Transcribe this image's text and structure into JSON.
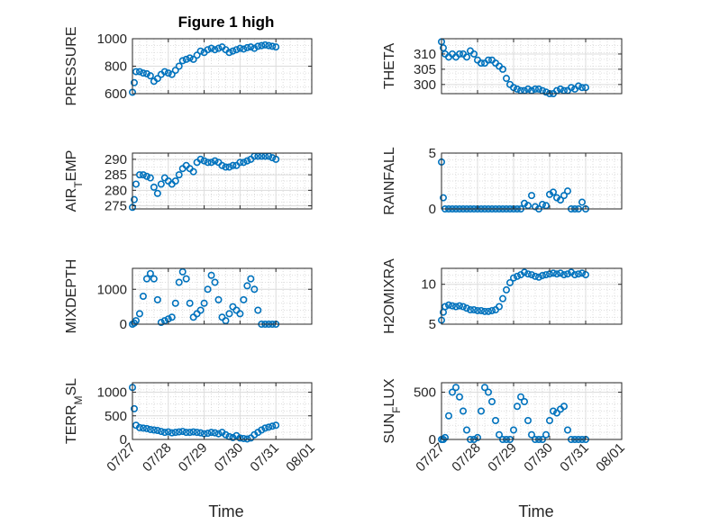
{
  "figure": {
    "title": "Figure 1 high",
    "xlabel": "Time",
    "marker_color": "#0072BD",
    "x_ticks": [
      "07/27",
      "07/28",
      "07/29",
      "07/30",
      "07/31",
      "08/01"
    ]
  },
  "chart_data": [
    {
      "type": "scatter",
      "ylabel": "PRESSURE",
      "ylim": [
        600,
        1000
      ],
      "yticks": [
        600,
        800,
        1000
      ],
      "xlim": [
        0,
        5
      ],
      "grid": true,
      "x": [
        0.0,
        0.05,
        0.1,
        0.2,
        0.3,
        0.4,
        0.5,
        0.6,
        0.7,
        0.8,
        0.9,
        1.0,
        1.1,
        1.2,
        1.3,
        1.4,
        1.5,
        1.6,
        1.7,
        1.8,
        1.9,
        2.0,
        2.1,
        2.2,
        2.3,
        2.4,
        2.5,
        2.6,
        2.7,
        2.8,
        2.9,
        3.0,
        3.1,
        3.2,
        3.3,
        3.4,
        3.5,
        3.6,
        3.7,
        3.8,
        3.9,
        4.0
      ],
      "y": [
        610,
        680,
        760,
        760,
        750,
        745,
        730,
        690,
        710,
        740,
        760,
        750,
        740,
        770,
        800,
        840,
        850,
        860,
        850,
        880,
        910,
        900,
        920,
        930,
        920,
        930,
        940,
        920,
        900,
        910,
        920,
        930,
        925,
        935,
        940,
        930,
        945,
        950,
        955,
        950,
        945,
        940
      ]
    },
    {
      "type": "scatter",
      "ylabel": "THETA",
      "ylim": [
        297,
        315
      ],
      "yticks": [
        300,
        305,
        310
      ],
      "xlim": [
        0,
        5
      ],
      "grid": true,
      "x": [
        0.0,
        0.05,
        0.1,
        0.2,
        0.3,
        0.4,
        0.5,
        0.6,
        0.7,
        0.8,
        0.9,
        1.0,
        1.1,
        1.2,
        1.3,
        1.4,
        1.5,
        1.6,
        1.7,
        1.8,
        1.9,
        2.0,
        2.1,
        2.2,
        2.3,
        2.4,
        2.5,
        2.6,
        2.7,
        2.8,
        2.9,
        3.0,
        3.1,
        3.2,
        3.3,
        3.4,
        3.5,
        3.6,
        3.7,
        3.8,
        3.9,
        4.0
      ],
      "y": [
        314,
        312,
        310,
        309,
        310,
        309,
        310,
        310,
        309,
        311,
        310,
        308,
        307,
        307,
        308,
        308,
        307,
        306,
        305,
        302,
        300,
        299,
        298.5,
        298,
        298,
        298.5,
        298,
        298.5,
        298.5,
        298,
        297.5,
        297,
        297,
        298,
        298.5,
        298,
        298,
        299,
        298.5,
        299.5,
        299,
        299
      ]
    },
    {
      "type": "scatter",
      "ylabel": "AIR_TEMP",
      "ylim": [
        274,
        292
      ],
      "yticks": [
        275,
        280,
        285,
        290
      ],
      "xlim": [
        0,
        5
      ],
      "grid": true,
      "x": [
        0.0,
        0.05,
        0.1,
        0.2,
        0.3,
        0.4,
        0.5,
        0.6,
        0.7,
        0.8,
        0.9,
        1.0,
        1.1,
        1.2,
        1.3,
        1.4,
        1.5,
        1.6,
        1.7,
        1.8,
        1.9,
        2.0,
        2.1,
        2.2,
        2.3,
        2.4,
        2.5,
        2.6,
        2.7,
        2.8,
        2.9,
        3.0,
        3.1,
        3.2,
        3.3,
        3.4,
        3.5,
        3.6,
        3.7,
        3.8,
        3.9,
        4.0
      ],
      "y": [
        274.5,
        277,
        282,
        285,
        285,
        284.5,
        284,
        281,
        279,
        282,
        284,
        283,
        282,
        283,
        285,
        287,
        288,
        287,
        286,
        289,
        290,
        289.5,
        289,
        289,
        289.5,
        289,
        288,
        287.5,
        287.5,
        288,
        288,
        289,
        289,
        289.5,
        290,
        291,
        291,
        291,
        291,
        291,
        290.5,
        290
      ]
    },
    {
      "type": "scatter",
      "ylabel": "RAINFALL",
      "ylim": [
        0,
        5
      ],
      "yticks": [
        0,
        5
      ],
      "xlim": [
        0,
        5
      ],
      "grid": true,
      "x": [
        0.0,
        0.05,
        0.1,
        0.2,
        0.3,
        0.4,
        0.5,
        0.6,
        0.7,
        0.8,
        0.9,
        1.0,
        1.1,
        1.2,
        1.3,
        1.4,
        1.5,
        1.6,
        1.7,
        1.8,
        1.9,
        2.0,
        2.1,
        2.2,
        2.3,
        2.4,
        2.5,
        2.6,
        2.7,
        2.8,
        2.9,
        3.0,
        3.1,
        3.2,
        3.3,
        3.4,
        3.5,
        3.6,
        3.7,
        3.8,
        3.9,
        4.0
      ],
      "y": [
        4.2,
        1,
        0,
        0,
        0,
        0,
        0,
        0,
        0,
        0,
        0,
        0,
        0,
        0,
        0,
        0,
        0,
        0,
        0,
        0,
        0,
        0,
        0,
        0,
        0.5,
        0.3,
        1.2,
        0.2,
        0,
        0.4,
        0.3,
        1.3,
        1.5,
        1,
        0.8,
        1.2,
        1.6,
        0,
        0,
        0,
        0.6,
        0
      ]
    },
    {
      "type": "scatter",
      "ylabel": "MIXDEPTH",
      "ylim": [
        0,
        1600
      ],
      "yticks": [
        0,
        1000
      ],
      "xlim": [
        0,
        5
      ],
      "grid": true,
      "x": [
        0.0,
        0.05,
        0.1,
        0.2,
        0.3,
        0.4,
        0.5,
        0.6,
        0.7,
        0.8,
        0.9,
        1.0,
        1.1,
        1.2,
        1.3,
        1.4,
        1.5,
        1.6,
        1.7,
        1.8,
        1.9,
        2.0,
        2.1,
        2.2,
        2.3,
        2.4,
        2.5,
        2.6,
        2.7,
        2.8,
        2.9,
        3.0,
        3.1,
        3.2,
        3.3,
        3.4,
        3.5,
        3.6,
        3.7,
        3.8,
        3.9,
        4.0
      ],
      "y": [
        0,
        30,
        100,
        300,
        800,
        1300,
        1450,
        1300,
        700,
        50,
        100,
        150,
        200,
        600,
        1200,
        1500,
        1300,
        600,
        200,
        300,
        400,
        600,
        1000,
        1400,
        1200,
        700,
        200,
        100,
        300,
        500,
        400,
        300,
        700,
        1100,
        1300,
        1000,
        400,
        0,
        0,
        0,
        0,
        0
      ]
    },
    {
      "type": "scatter",
      "ylabel": "H2OMIXRA",
      "ylim": [
        5,
        12
      ],
      "yticks": [
        5,
        10
      ],
      "xlim": [
        0,
        5
      ],
      "grid": true,
      "x": [
        0.0,
        0.05,
        0.1,
        0.2,
        0.3,
        0.4,
        0.5,
        0.6,
        0.7,
        0.8,
        0.9,
        1.0,
        1.1,
        1.2,
        1.3,
        1.4,
        1.5,
        1.6,
        1.7,
        1.8,
        1.9,
        2.0,
        2.1,
        2.2,
        2.3,
        2.4,
        2.5,
        2.6,
        2.7,
        2.8,
        2.9,
        3.0,
        3.1,
        3.2,
        3.3,
        3.4,
        3.5,
        3.6,
        3.7,
        3.8,
        3.9,
        4.0
      ],
      "y": [
        5.5,
        6.5,
        7.2,
        7.4,
        7.3,
        7.2,
        7.3,
        7.2,
        7.0,
        6.8,
        6.8,
        6.7,
        6.7,
        6.6,
        6.6,
        6.7,
        6.8,
        7.2,
        8.2,
        9.3,
        10.2,
        10.8,
        11.0,
        11.2,
        11.5,
        11.3,
        11.2,
        11.0,
        10.9,
        11.1,
        11.2,
        11.3,
        11.4,
        11.3,
        11.4,
        11.2,
        11.3,
        11.5,
        11.2,
        11.3,
        11.4,
        11.2
      ]
    },
    {
      "type": "scatter",
      "ylabel": "TERR_MSL",
      "ylim": [
        0,
        1200
      ],
      "yticks": [
        0,
        500,
        1000
      ],
      "xlim": [
        0,
        5
      ],
      "grid": true,
      "x": [
        0.0,
        0.05,
        0.1,
        0.2,
        0.3,
        0.4,
        0.5,
        0.6,
        0.7,
        0.8,
        0.9,
        1.0,
        1.1,
        1.2,
        1.3,
        1.4,
        1.5,
        1.6,
        1.7,
        1.8,
        1.9,
        2.0,
        2.1,
        2.2,
        2.3,
        2.4,
        2.5,
        2.6,
        2.7,
        2.8,
        2.9,
        3.0,
        3.1,
        3.2,
        3.3,
        3.4,
        3.5,
        3.6,
        3.7,
        3.8,
        3.9,
        4.0
      ],
      "y": [
        1100,
        650,
        300,
        250,
        240,
        230,
        210,
        200,
        190,
        170,
        150,
        160,
        140,
        150,
        160,
        170,
        150,
        150,
        160,
        150,
        140,
        120,
        130,
        150,
        140,
        120,
        150,
        100,
        60,
        40,
        80,
        30,
        20,
        10,
        30,
        100,
        150,
        200,
        240,
        260,
        280,
        300
      ]
    },
    {
      "type": "scatter",
      "ylabel": "SUN_FLUX",
      "ylim": [
        0,
        600
      ],
      "yticks": [
        0,
        500
      ],
      "xlim": [
        0,
        5
      ],
      "grid": true,
      "x": [
        0.0,
        0.05,
        0.1,
        0.2,
        0.3,
        0.4,
        0.5,
        0.6,
        0.7,
        0.8,
        0.9,
        1.0,
        1.1,
        1.2,
        1.3,
        1.4,
        1.5,
        1.6,
        1.7,
        1.8,
        1.9,
        2.0,
        2.1,
        2.2,
        2.3,
        2.4,
        2.5,
        2.6,
        2.7,
        2.8,
        2.9,
        3.0,
        3.1,
        3.2,
        3.3,
        3.4,
        3.5,
        3.6,
        3.7,
        3.8,
        3.9,
        4.0
      ],
      "y": [
        0,
        0,
        20,
        250,
        500,
        550,
        450,
        300,
        100,
        0,
        0,
        20,
        300,
        550,
        500,
        400,
        200,
        50,
        0,
        0,
        0,
        100,
        350,
        450,
        400,
        200,
        50,
        0,
        0,
        0,
        50,
        200,
        300,
        280,
        320,
        350,
        100,
        0,
        0,
        0,
        0,
        0
      ]
    }
  ]
}
